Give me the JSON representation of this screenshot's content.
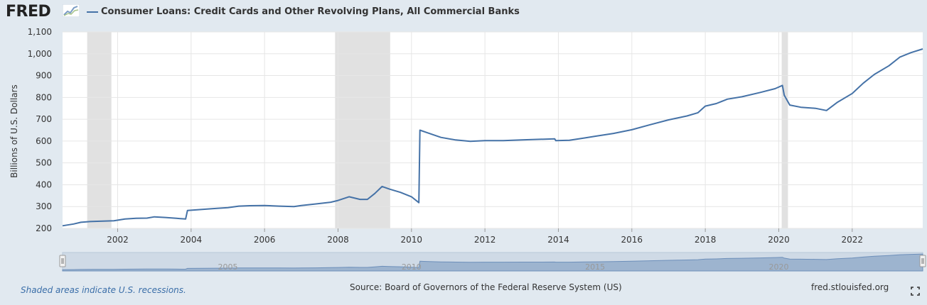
{
  "header": {
    "logo_text": "FRED",
    "logo_icon": "fred-trend-icon",
    "series_title": "Consumer Loans: Credit Cards and Other Revolving Plans, All Commercial Banks"
  },
  "footer": {
    "recession_note": "Shaded areas indicate U.S. recessions.",
    "source": "Source: Board of Governors of the Federal Reserve System (US)",
    "site": "fred.stlouisfed.org",
    "fullscreen_icon": "fullscreen-icon"
  },
  "colors": {
    "series": "#4572a7",
    "recession": "#e1e1e1",
    "background": "#e1e9f0",
    "plot_background": "#ffffff",
    "gridline": "#e6e6e6",
    "navigator_fill": "#9db4cf",
    "navigator_outline": "#6d8fba"
  },
  "chart_data": {
    "type": "line",
    "ylabel": "Billions of U.S. Dollars",
    "xlabel": "",
    "xlim": [
      2000.5,
      2023.92
    ],
    "ylim": [
      200,
      1100
    ],
    "grid": true,
    "y_ticks": [
      200,
      300,
      400,
      500,
      600,
      700,
      800,
      900,
      1000,
      1100
    ],
    "y_tick_labels": [
      "200",
      "300",
      "400",
      "500",
      "600",
      "700",
      "800",
      "900",
      "1,000",
      "1,100"
    ],
    "x_ticks": [
      2002,
      2004,
      2006,
      2008,
      2010,
      2012,
      2014,
      2016,
      2018,
      2020,
      2022
    ],
    "x_tick_labels": [
      "2002",
      "2004",
      "2006",
      "2008",
      "2010",
      "2012",
      "2014",
      "2016",
      "2018",
      "2020",
      "2022"
    ],
    "recessions": [
      [
        2001.17,
        2001.83
      ],
      [
        2007.92,
        2009.42
      ],
      [
        2020.08,
        2020.25
      ]
    ],
    "navigator_ticks": [
      2005,
      2010,
      2015,
      2020
    ],
    "navigator_tick_labels": [
      "2005",
      "2010",
      "2015",
      "2020"
    ],
    "series": [
      {
        "name": "Consumer Loans: Credit Cards and Other Revolving Plans, All Commercial Banks",
        "x": [
          2000.5,
          2000.8,
          2001.0,
          2001.3,
          2001.6,
          2001.9,
          2002.2,
          2002.5,
          2002.8,
          2003.0,
          2003.3,
          2003.6,
          2003.85,
          2003.9,
          2004.3,
          2004.7,
          2005.0,
          2005.3,
          2005.6,
          2006.0,
          2006.4,
          2006.8,
          2007.0,
          2007.4,
          2007.8,
          2008.0,
          2008.3,
          2008.6,
          2008.8,
          2009.0,
          2009.2,
          2009.4,
          2009.7,
          2010.0,
          2010.2,
          2010.23,
          2010.4,
          2010.8,
          2011.2,
          2011.6,
          2012.0,
          2012.5,
          2013.0,
          2013.5,
          2013.9,
          2013.93,
          2014.3,
          2014.7,
          2015.0,
          2015.5,
          2016.0,
          2016.5,
          2017.0,
          2017.5,
          2017.8,
          2018.0,
          2018.3,
          2018.6,
          2019.0,
          2019.5,
          2019.9,
          2020.1,
          2020.15,
          2020.3,
          2020.6,
          2021.0,
          2021.3,
          2021.6,
          2022.0,
          2022.3,
          2022.6,
          2023.0,
          2023.3,
          2023.6,
          2023.92
        ],
        "values": [
          212,
          220,
          228,
          232,
          233,
          235,
          243,
          246,
          247,
          253,
          250,
          246,
          243,
          282,
          287,
          292,
          295,
          302,
          304,
          305,
          302,
          300,
          305,
          312,
          320,
          328,
          345,
          333,
          333,
          360,
          392,
          380,
          365,
          345,
          318,
          650,
          640,
          617,
          605,
          599,
          602,
          602,
          605,
          608,
          610,
          602,
          604,
          614,
          622,
          635,
          652,
          675,
          697,
          715,
          730,
          760,
          772,
          792,
          803,
          823,
          840,
          855,
          810,
          765,
          755,
          750,
          740,
          778,
          818,
          865,
          905,
          945,
          985,
          1005,
          1022
        ]
      }
    ]
  }
}
